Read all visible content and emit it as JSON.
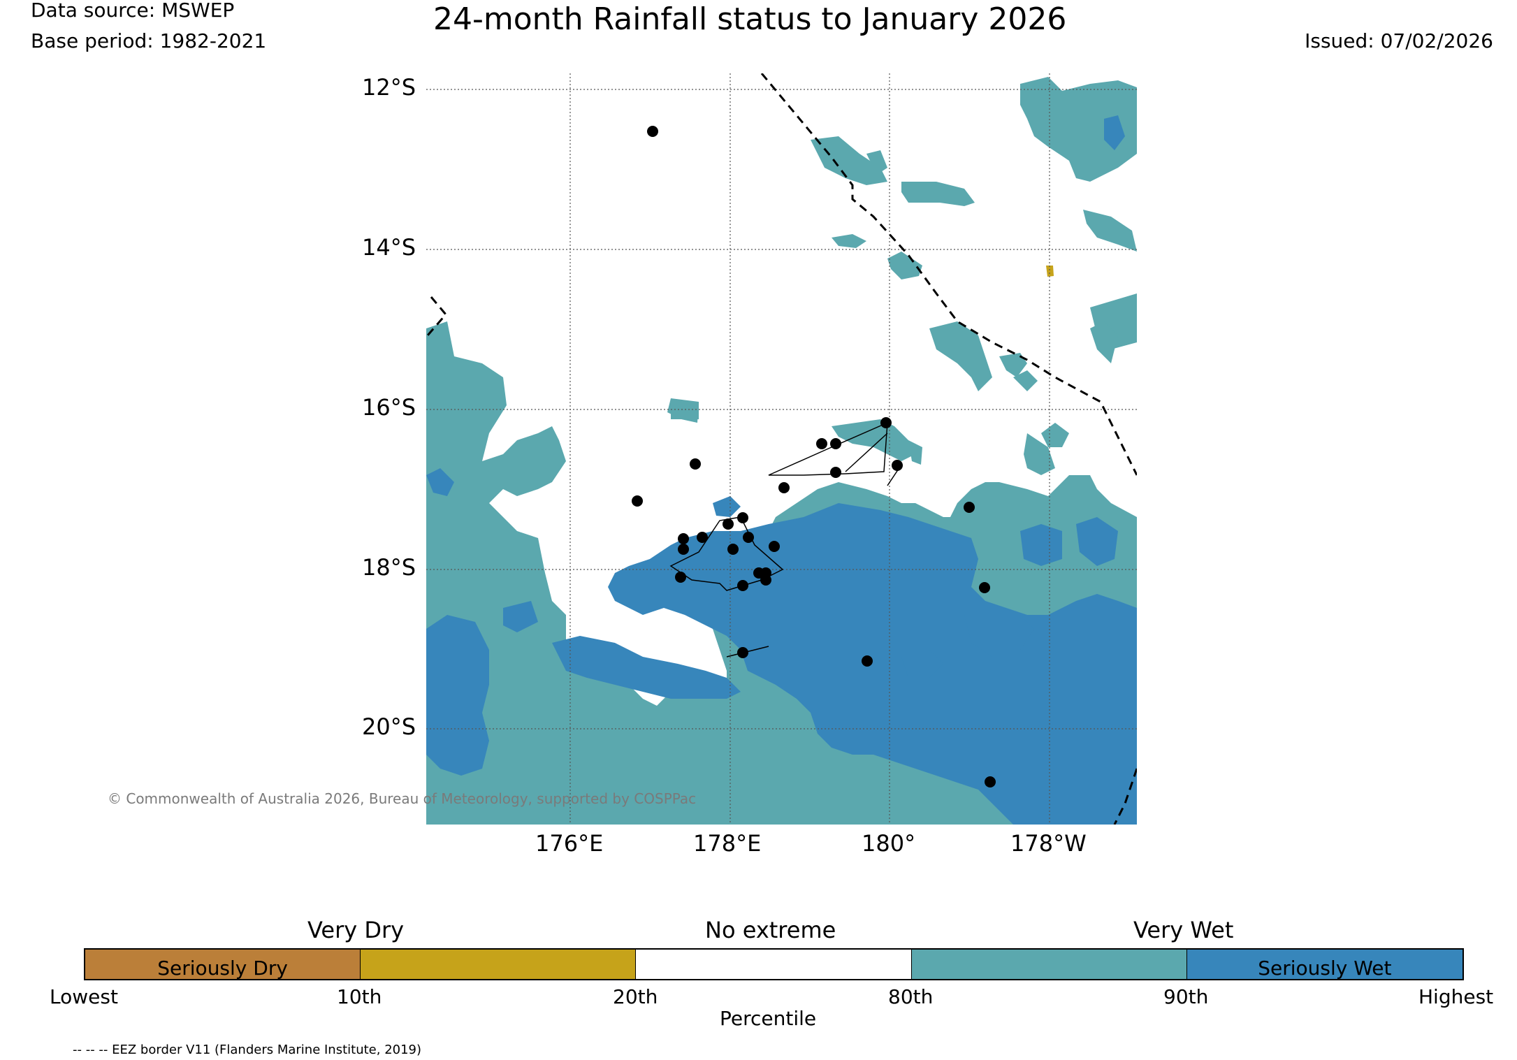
{
  "header": {
    "data_source": "Data source: MSWEP",
    "base_period": "Base period: 1982-2021",
    "title": "24-month Rainfall status to January 2026",
    "issued": "Issued: 07/02/2026"
  },
  "map": {
    "lat_labels": [
      "12°S",
      "14°S",
      "16°S",
      "18°S",
      "20°S"
    ],
    "lon_labels": [
      "176°E",
      "178°E",
      "180°",
      "178°W"
    ],
    "copyright": "© Commonwealth of Australia 2026, Bureau of Meteorology, supported by COSPPac",
    "colors": {
      "seriously_dry": "#bb7f39",
      "very_dry": "#c6a31a",
      "no_extreme": "#ffffff",
      "very_wet": "#5ba8ae",
      "seriously_wet": "#3786bb",
      "grid": "#555555"
    }
  },
  "legend": {
    "top_labels": {
      "very_dry": "Very Dry",
      "no_extreme": "No extreme",
      "very_wet": "Very Wet"
    },
    "segments": [
      {
        "label": "Seriously Dry",
        "color": "#bb7f39"
      },
      {
        "label": "",
        "color": "#c6a31a"
      },
      {
        "label": "",
        "color": "#ffffff"
      },
      {
        "label": "",
        "color": "#5ba8ae"
      },
      {
        "label": "Seriously Wet",
        "color": "#3786bb"
      }
    ],
    "ticks": [
      "Lowest",
      "10th",
      "20th",
      "80th",
      "90th",
      "Highest"
    ],
    "axis_label": "Percentile"
  },
  "footer": {
    "eez_note": "-- -- -- EEZ border V11 (Flanders Marine Institute, 2019)"
  }
}
